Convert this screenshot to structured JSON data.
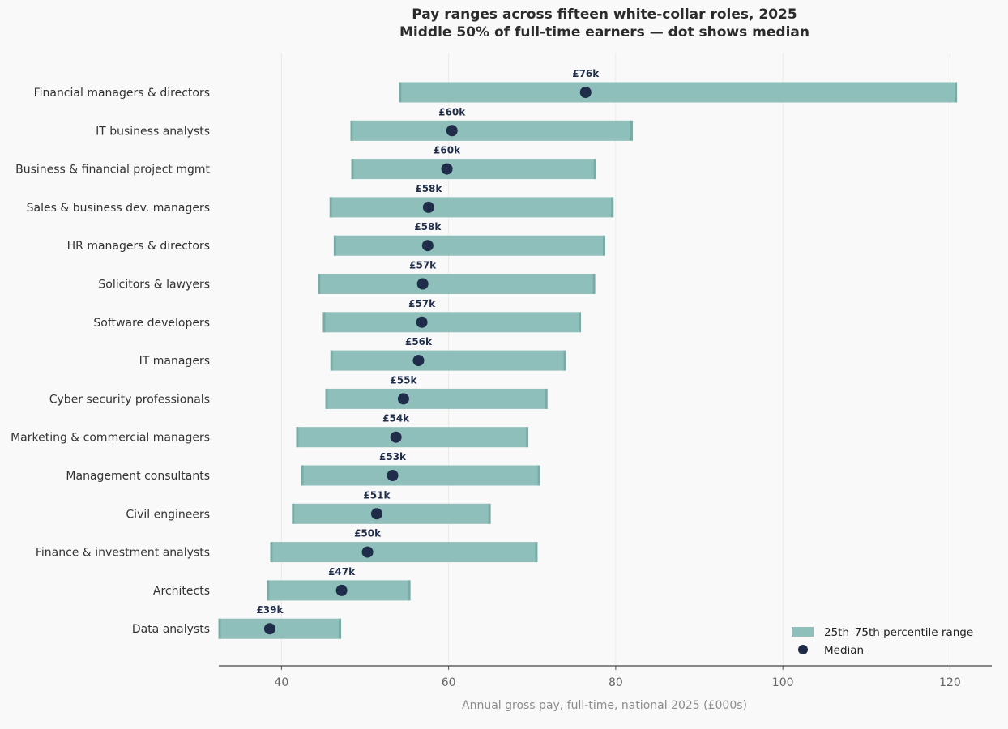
{
  "chart_data": {
    "type": "range-bar",
    "title": "Pay ranges across fifteen white-collar roles, 2025",
    "subtitle": "Middle 50% of full-time earners — dot shows median",
    "xlabel": "Annual gross pay, full-time, national 2025 (£000s)",
    "ylabel": "",
    "xlim": [
      32.5,
      125
    ],
    "xticks": [
      40,
      60,
      80,
      100,
      120
    ],
    "grid": "vertical",
    "legend_position": "bottom-right",
    "colors": {
      "range": "#8fbfba",
      "range_edge": "#7aaca6",
      "median": "#1f2d4a"
    },
    "legend": {
      "range_label": "25th–75th percentile range",
      "median_label": "Median"
    },
    "rows": [
      {
        "role": "Financial managers & directors",
        "p25": 54.2,
        "median": 76.4,
        "p75": 120.7,
        "median_label": "£76k"
      },
      {
        "role": "IT business analysts",
        "p25": 48.4,
        "median": 60.4,
        "p75": 81.9,
        "median_label": "£60k"
      },
      {
        "role": "Business & financial project mgmt",
        "p25": 48.5,
        "median": 59.8,
        "p75": 77.5,
        "median_label": "£60k"
      },
      {
        "role": "Sales & business dev. managers",
        "p25": 45.9,
        "median": 57.6,
        "p75": 79.6,
        "median_label": "£58k"
      },
      {
        "role": "HR managers & directors",
        "p25": 46.4,
        "median": 57.5,
        "p75": 78.6,
        "median_label": "£58k"
      },
      {
        "role": "Solicitors & lawyers",
        "p25": 44.5,
        "median": 56.9,
        "p75": 77.4,
        "median_label": "£57k"
      },
      {
        "role": "Software developers",
        "p25": 45.1,
        "median": 56.8,
        "p75": 75.7,
        "median_label": "£57k"
      },
      {
        "role": "IT managers",
        "p25": 46.0,
        "median": 56.4,
        "p75": 73.9,
        "median_label": "£56k"
      },
      {
        "role": "Cyber security professionals",
        "p25": 45.4,
        "median": 54.6,
        "p75": 71.7,
        "median_label": "£55k"
      },
      {
        "role": "Marketing & commercial managers",
        "p25": 41.9,
        "median": 53.7,
        "p75": 69.4,
        "median_label": "£54k"
      },
      {
        "role": "Management consultants",
        "p25": 42.5,
        "median": 53.3,
        "p75": 70.8,
        "median_label": "£53k"
      },
      {
        "role": "Civil engineers",
        "p25": 41.4,
        "median": 51.4,
        "p75": 64.9,
        "median_label": "£51k"
      },
      {
        "role": "Finance & investment analysts",
        "p25": 38.8,
        "median": 50.3,
        "p75": 70.5,
        "median_label": "£50k"
      },
      {
        "role": "Architects",
        "p25": 38.4,
        "median": 47.2,
        "p75": 55.3,
        "median_label": "£47k"
      },
      {
        "role": "Data analysts",
        "p25": 32.6,
        "median": 38.6,
        "p75": 47.0,
        "median_label": "£39k"
      }
    ]
  }
}
